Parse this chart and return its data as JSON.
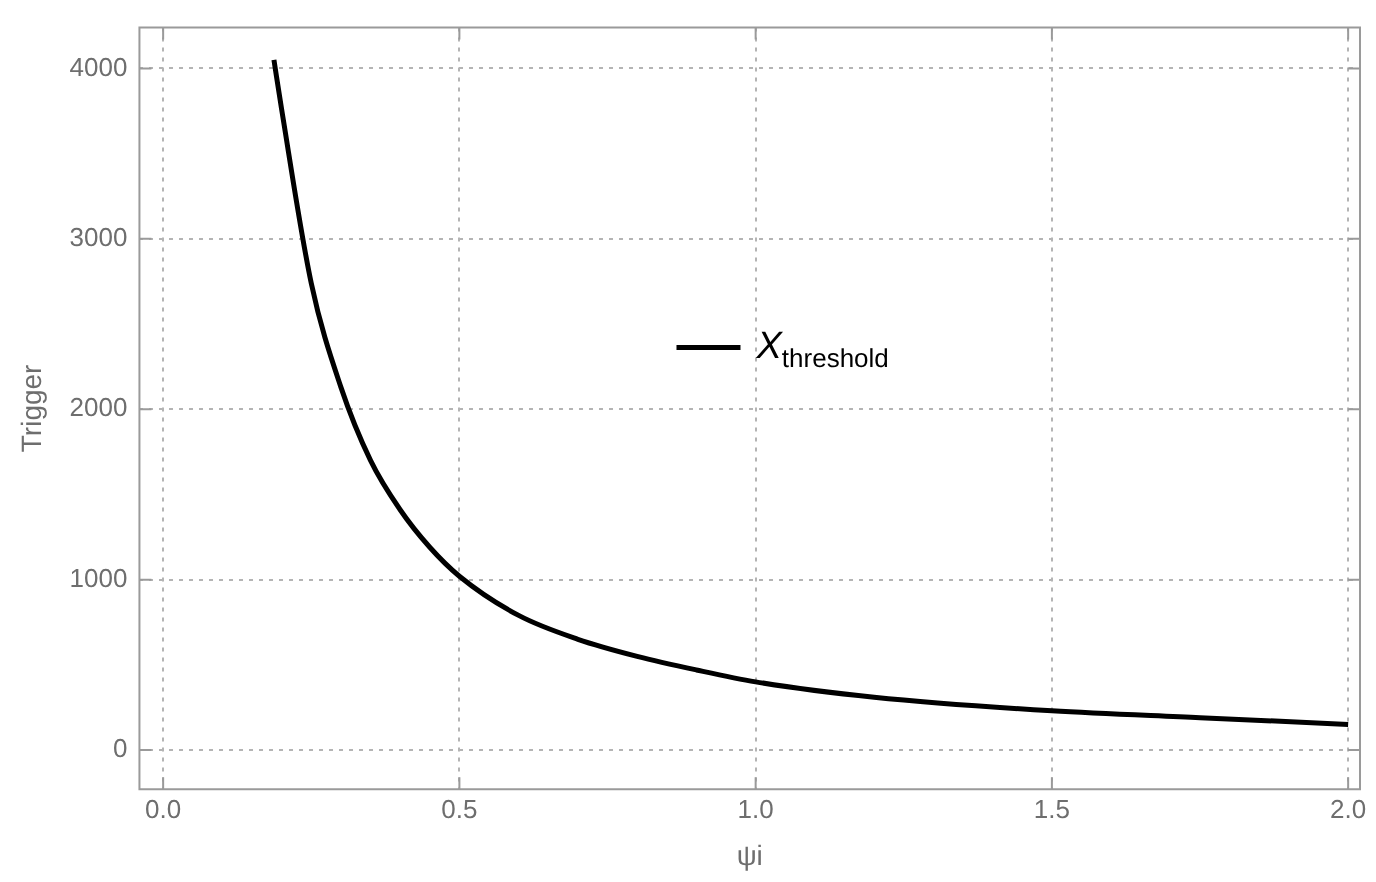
{
  "chart_data": {
    "type": "line",
    "xlabel": "ψi",
    "ylabel": "Trigger",
    "x": [
      0.187,
      0.2,
      0.25,
      0.3,
      0.35,
      0.4,
      0.45,
      0.5,
      0.6,
      0.7,
      0.8,
      0.9,
      1.0,
      1.2,
      1.5,
      1.75,
      2.0
    ],
    "series": [
      {
        "name": "X$_{threshold}$",
        "color": "#000000",
        "values": [
          4050,
          3760,
          2740,
          2130,
          1700,
          1410,
          1190,
          1020,
          790,
          650,
          550,
          470,
          400,
          310,
          230,
          190,
          150
        ]
      }
    ],
    "xlim": [
      -0.04,
      2.02
    ],
    "xticks": [
      {
        "value": 0,
        "label": "0.0"
      },
      {
        "value": 0.5,
        "label": "0.5"
      },
      {
        "value": 1,
        "label": "1.0"
      },
      {
        "value": 1.5,
        "label": "1.5"
      },
      {
        "value": 2,
        "label": "2.0"
      }
    ],
    "ylim": [
      -230,
      4240
    ],
    "yticks": [
      0,
      1000,
      2000,
      3000,
      4000
    ],
    "grid": true,
    "legend": "center",
    "marker": "none",
    "line_style": "solid"
  }
}
